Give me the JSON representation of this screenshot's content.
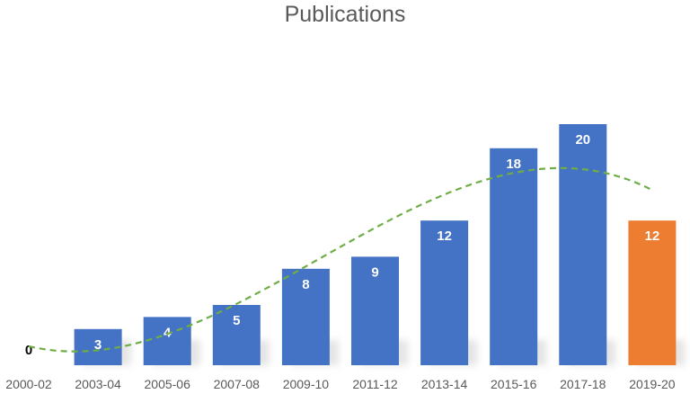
{
  "chart_data": {
    "type": "bar",
    "title": "Publications",
    "xlabel": "",
    "ylabel": "",
    "categories": [
      "2000-02",
      "2003-04",
      "2005-06",
      "2007-08",
      "2009-10",
      "2011-12",
      "2013-14",
      "2015-16",
      "2017-18",
      "2019-20"
    ],
    "values": [
      0,
      3,
      4,
      5,
      8,
      9,
      12,
      18,
      20,
      12
    ],
    "bar_colors": [
      "#4472c4",
      "#4472c4",
      "#4472c4",
      "#4472c4",
      "#4472c4",
      "#4472c4",
      "#4472c4",
      "#4472c4",
      "#4472c4",
      "#ed7d31"
    ],
    "trendline": {
      "style": "dashed",
      "color": "#70ad47",
      "kind": "polynomial"
    },
    "data_labels": true,
    "grid": false,
    "legend": "none"
  }
}
